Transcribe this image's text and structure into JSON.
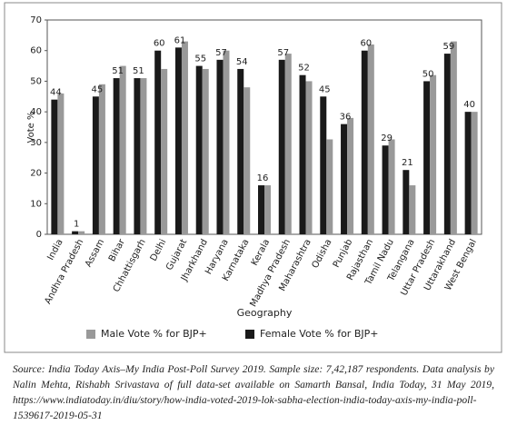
{
  "chart_data": {
    "type": "bar",
    "y_label": "Vote %",
    "x_label": "Geography",
    "categories": [
      "India",
      "Andhra Pradesh",
      "Assam",
      "Bihar",
      "Chhattisgarh",
      "Delhi",
      "Gujarat",
      "Jharkhand",
      "Haryana",
      "Karnataka",
      "Kerala",
      "Madhya Pradesh",
      "Maharashtra",
      "Odisha",
      "Punjab",
      "Rajasthan",
      "Tamil Nadu",
      "Telangana",
      "Uttar Pradesh",
      "Uttarakhand",
      "West Bengal"
    ],
    "series": [
      {
        "name": "Male Vote % for BJP+",
        "color": "#999999",
        "values": [
          46,
          1,
          49,
          55,
          51,
          54,
          63,
          54,
          60,
          48,
          16,
          59,
          50,
          31,
          38,
          62,
          31,
          16,
          52,
          63,
          40
        ]
      },
      {
        "name": "Female Vote % for BJP+",
        "color": "#1a1a1a",
        "values": [
          44,
          1,
          45,
          51,
          51,
          60,
          61,
          55,
          57,
          54,
          16,
          57,
          52,
          45,
          36,
          60,
          29,
          21,
          50,
          59,
          40
        ]
      }
    ],
    "ylim": [
      0,
      70
    ],
    "yticks": [
      0,
      10,
      20,
      30,
      40,
      50,
      60,
      70
    ]
  },
  "source": "Source: India Today Axis–My India Post-Poll Survey 2019. Sample size: 7,42,187 respondents. Data analysis by Nalin Mehta, Rishabh Srivastava of full data-set available on Samarth Bansal, India Today, 31 May 2019, https://www.indiatoday.in/diu/story/how-india-voted-2019-lok-sabha-election-india-today-axis-my-india-poll-1539617-2019-05-31"
}
